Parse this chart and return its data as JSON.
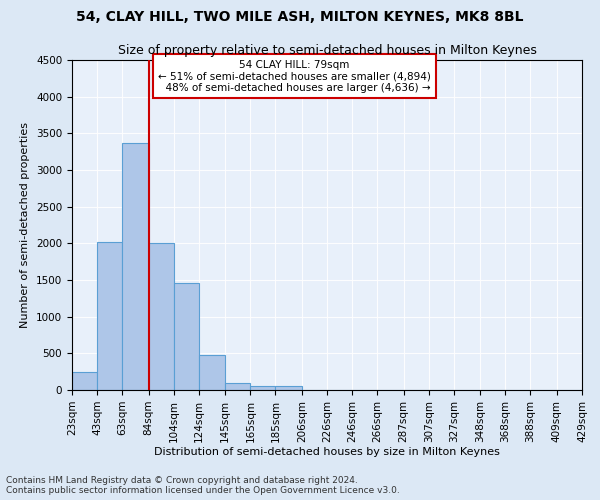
{
  "title": "54, CLAY HILL, TWO MILE ASH, MILTON KEYNES, MK8 8BL",
  "subtitle": "Size of property relative to semi-detached houses in Milton Keynes",
  "xlabel": "Distribution of semi-detached houses by size in Milton Keynes",
  "ylabel": "Number of semi-detached properties",
  "footnote1": "Contains HM Land Registry data © Crown copyright and database right 2024.",
  "footnote2": "Contains public sector information licensed under the Open Government Licence v3.0.",
  "annotation_line1": "    54 CLAY HILL: 79sqm    ",
  "annotation_line2": "← 51% of semi-detached houses are smaller (4,894)",
  "annotation_line3": "  48% of semi-detached houses are larger (4,636) →",
  "property_size_sqm": 79,
  "bin_edges": [
    23,
    43,
    63,
    84,
    104,
    124,
    145,
    165,
    185,
    206,
    226,
    246,
    266,
    287,
    307,
    327,
    348,
    368,
    388,
    409,
    429
  ],
  "bar_heights": [
    250,
    2020,
    3370,
    2010,
    1460,
    480,
    100,
    55,
    50,
    0,
    0,
    0,
    0,
    0,
    0,
    0,
    0,
    0,
    0,
    0
  ],
  "bar_color": "#aec6e8",
  "bar_edge_color": "#5a9fd4",
  "vline_color": "#cc0000",
  "vline_x": 84,
  "annotation_box_edge": "#cc0000",
  "ylim": [
    0,
    4500
  ],
  "yticks": [
    0,
    500,
    1000,
    1500,
    2000,
    2500,
    3000,
    3500,
    4000,
    4500
  ],
  "tick_labels": [
    "23sqm",
    "43sqm",
    "63sqm",
    "84sqm",
    "104sqm",
    "124sqm",
    "145sqm",
    "165sqm",
    "185sqm",
    "206sqm",
    "226sqm",
    "246sqm",
    "266sqm",
    "287sqm",
    "307sqm",
    "327sqm",
    "348sqm",
    "368sqm",
    "388sqm",
    "409sqm",
    "429sqm"
  ],
  "background_color": "#dce8f5",
  "plot_bg_color": "#e8f0fa",
  "title_fontsize": 10,
  "subtitle_fontsize": 9,
  "axis_label_fontsize": 8,
  "tick_fontsize": 7.5,
  "annotation_fontsize": 7.5,
  "footnote_fontsize": 6.5
}
